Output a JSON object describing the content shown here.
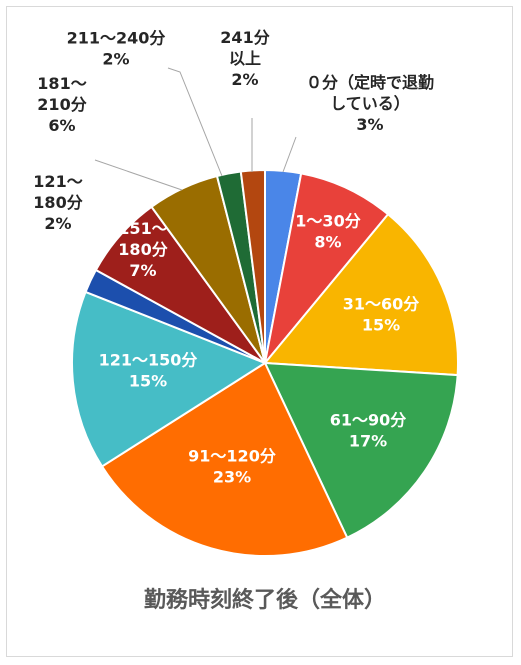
{
  "chart_data": {
    "type": "pie",
    "title": "勤務時刻終了後（全体）",
    "slices": [
      {
        "label": [
          "０分（定時で退勤",
          "している）",
          "3%"
        ],
        "value": 3,
        "color": "#4a86e8"
      },
      {
        "label": [
          "1～30分",
          "8%"
        ],
        "value": 8,
        "color": "#e8413a"
      },
      {
        "label": [
          "31～60分",
          "15%"
        ],
        "value": 15,
        "color": "#f9b500"
      },
      {
        "label": [
          "61～90分",
          "17%"
        ],
        "value": 17,
        "color": "#35a451"
      },
      {
        "label": [
          "91～120分",
          "23%"
        ],
        "value": 23,
        "color": "#ff6d01"
      },
      {
        "label": [
          "121～150分",
          "15%"
        ],
        "value": 15,
        "color": "#46bdc6"
      },
      {
        "label": [
          "121～",
          "180分",
          "2%"
        ],
        "value": 2,
        "color": "#1c4fad"
      },
      {
        "label": [
          "151～",
          "180分",
          "7%"
        ],
        "value": 7,
        "color": "#9e1f1b"
      },
      {
        "label": [
          "181～",
          "210分",
          "6%"
        ],
        "value": 6,
        "color": "#9a6d00"
      },
      {
        "label": [
          "211～240分",
          "2%"
        ],
        "value": 2,
        "color": "#1f6b35"
      },
      {
        "label": [
          "241分",
          "以上",
          "2%"
        ],
        "value": 2,
        "color": "#b34710"
      }
    ]
  }
}
